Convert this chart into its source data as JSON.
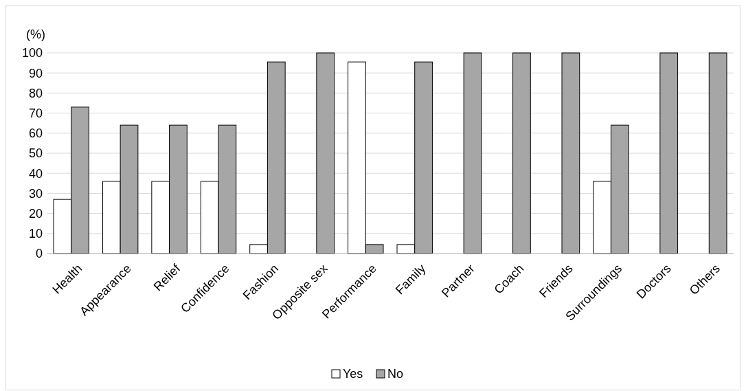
{
  "chart_data": {
    "type": "bar",
    "ylabel": "(%)",
    "categories": [
      "Health",
      "Appearance",
      "Relief",
      "Confidence",
      "Fashion",
      "Opposite sex",
      "Performance",
      "Family",
      "Partner",
      "Coach",
      "Friends",
      "Surroundings",
      "Doctors",
      "Others"
    ],
    "series": [
      {
        "name": "Yes",
        "color": "#ffffff",
        "values": [
          27,
          36,
          36,
          36,
          4.5,
          0,
          95.5,
          4.5,
          0,
          0,
          0,
          36,
          0,
          0
        ]
      },
      {
        "name": "No",
        "color": "#a6a6a6",
        "values": [
          73,
          64,
          64,
          64,
          95.5,
          100,
          4.5,
          95.5,
          100,
          100,
          100,
          64,
          100,
          100
        ]
      }
    ],
    "ylim": [
      0,
      100
    ],
    "yticks": [
      0,
      10,
      20,
      30,
      40,
      50,
      60,
      70,
      80,
      90,
      100
    ],
    "grid": "y",
    "legend": "bottom"
  }
}
